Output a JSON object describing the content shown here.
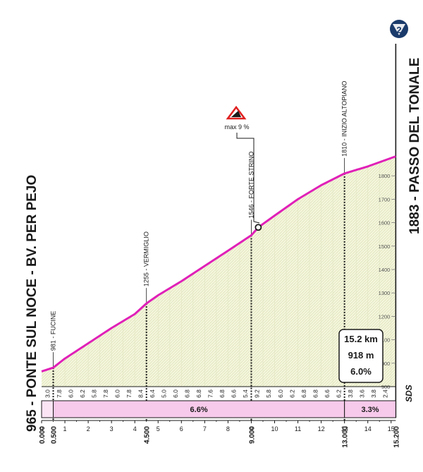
{
  "colors": {
    "profile_line": "#e020b8",
    "area_fill": "#f4f6dc",
    "hatch": "#d8dcb0",
    "bar_pink": "#f7c9ea",
    "badge": "#1a3a6b",
    "text": "#1a1a1a"
  },
  "start_label": "965 - PONTE SUL NOCE - BV. PER PEJO",
  "finish_label": "1883 - PASSO DEL TONALE",
  "badge_number": "2",
  "logo_text": "SDS",
  "max_gradient": {
    "icon": "steep-gradient-icon",
    "label": "max 9 %",
    "km": 9.3
  },
  "stats": {
    "distance": "15.2 km",
    "gain": "918 m",
    "avg": "6.0%"
  },
  "chart_data": {
    "type": "area",
    "xlabel": "",
    "ylabel": "",
    "xlim": [
      0,
      15.2
    ],
    "ylim": [
      900,
      1883
    ],
    "x_ticks": [
      "0",
      "1",
      "2",
      "3",
      "4",
      "5",
      "6",
      "7",
      "8",
      "9",
      "10",
      "11",
      "12",
      "13",
      "14",
      "15"
    ],
    "y_ticks": [
      "900",
      "1000",
      "1100",
      "1200",
      "1300",
      "1400",
      "1500",
      "1600",
      "1700",
      "1800"
    ],
    "profile": {
      "km": [
        0,
        0.5,
        1,
        2,
        3,
        4,
        4.5,
        5,
        6,
        7,
        8,
        9,
        9.3,
        10,
        11,
        12,
        13,
        14,
        15.2
      ],
      "elev": [
        965,
        981,
        1020,
        1085,
        1150,
        1210,
        1255,
        1290,
        1350,
        1415,
        1480,
        1546,
        1580,
        1630,
        1700,
        1760,
        1810,
        1840,
        1883
      ]
    },
    "km_gradients": {
      "km": [
        0.25,
        0.75,
        1.25,
        1.75,
        2.25,
        2.75,
        3.25,
        3.75,
        4.25,
        4.75,
        5.25,
        5.75,
        6.25,
        6.75,
        7.25,
        7.75,
        8.25,
        8.75,
        9.25,
        9.75,
        10.25,
        10.75,
        11.25,
        11.75,
        12.25,
        12.75,
        13.25,
        13.75,
        14.25,
        14.75
      ],
      "labels": [
        "3.0",
        "7.8",
        "6.0",
        "6.2",
        "5.8",
        "7.8",
        "6.0",
        "7.8",
        "8.4",
        "6.4",
        "5.0",
        "6.0",
        "6.8",
        "6.8",
        "7.6",
        "6.8",
        "6.6",
        "5.4",
        "9.2",
        "5.8",
        "6.0",
        "6.2",
        "6.8",
        "6.8",
        "6.6",
        "6.2",
        "3.8",
        "3.6",
        "3.8",
        "2.4"
      ]
    },
    "segments": [
      {
        "from": 0.5,
        "to": 13.0,
        "label": "6.6%"
      },
      {
        "from": 13.0,
        "to": 15.2,
        "label": "3.3%"
      }
    ],
    "points": [
      {
        "km": 0.5,
        "elev": 981,
        "label": "981 - FUCINE",
        "dist_label": "0.500"
      },
      {
        "km": 4.5,
        "elev": 1255,
        "label": "1255 - VERMIGLIO",
        "dist_label": "4.500"
      },
      {
        "km": 9.0,
        "elev": 1546,
        "label": "1546 - FORTE STRINO",
        "dist_label": "9.000"
      },
      {
        "km": 13.0,
        "elev": 1810,
        "label": "1810 - INIZIO ALTOPIANO",
        "dist_label": "13.000"
      }
    ],
    "start_dist_label": "0.000",
    "end_dist_label": "15.200"
  }
}
